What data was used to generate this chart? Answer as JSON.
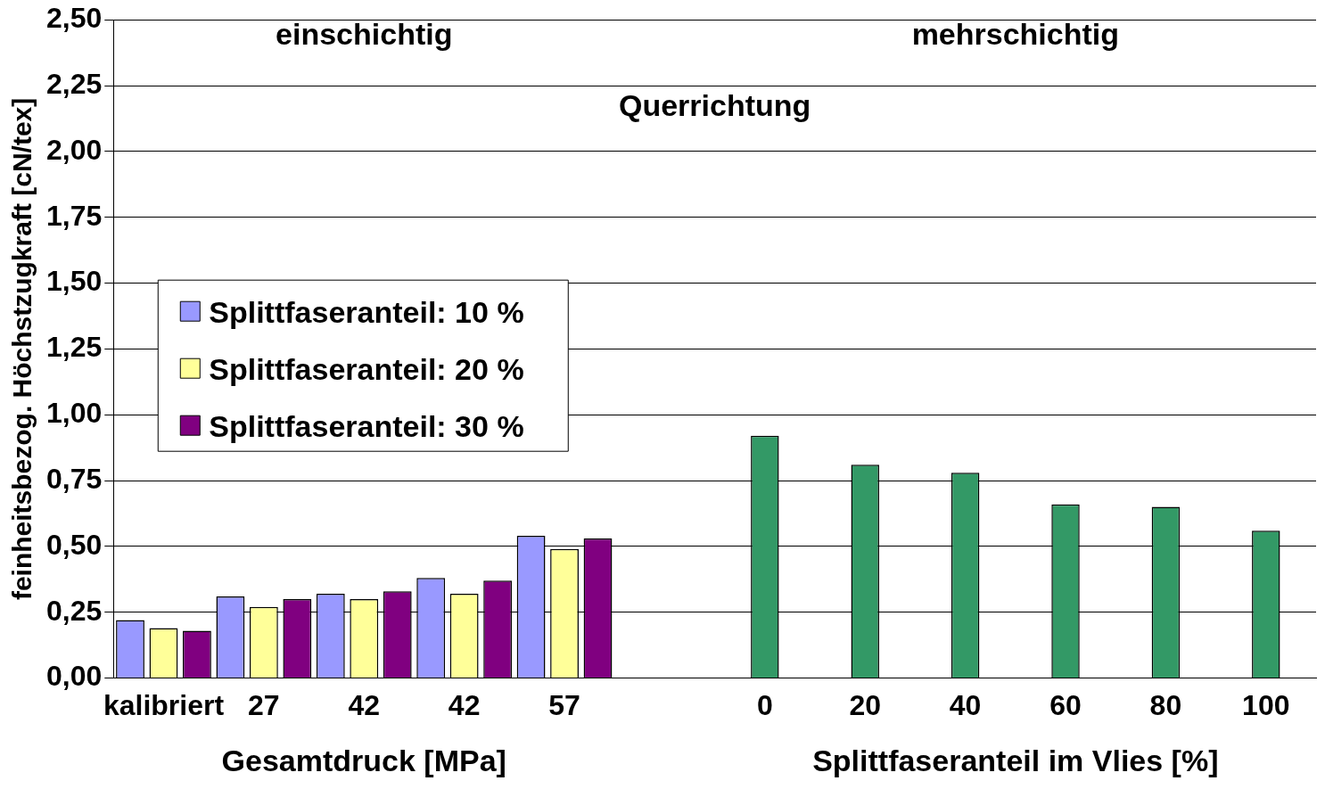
{
  "chart_data": {
    "type": "bar",
    "title": "Querrichtung",
    "xlabel": "Gesamtdruck [MPa]",
    "ylabel": "feinheitsbezog. Höchstzugkraft [cN/tex]",
    "annotations": [
      "einschichtig",
      "mehrschichtig",
      "Splittfaseranteil im Vlies [%]"
    ],
    "categories": [
      "kalibriert",
      "27",
      "42",
      "42",
      "57",
      null,
      "0",
      "20",
      "40",
      "60",
      "80",
      "100"
    ],
    "series": [
      {
        "name": "Splittfaseranteil: 10 %",
        "color": "#9999ff",
        "values": [
          0.22,
          0.31,
          0.32,
          0.38,
          0.54,
          null,
          null,
          null,
          null,
          null,
          null,
          null
        ]
      },
      {
        "name": "Splittfaseranteil: 20 %",
        "color": "#ffff99",
        "values": [
          0.19,
          0.27,
          0.3,
          0.32,
          0.49,
          null,
          null,
          null,
          null,
          null,
          null,
          null
        ]
      },
      {
        "name": "Splittfaseranteil: 30 %",
        "color": "#800080",
        "values": [
          0.18,
          0.3,
          0.33,
          0.37,
          0.53,
          null,
          null,
          null,
          null,
          null,
          null,
          null
        ]
      },
      {
        "color": "#339966",
        "values": [
          null,
          null,
          null,
          null,
          null,
          null,
          0.92,
          0.81,
          0.78,
          0.66,
          0.65,
          0.56
        ]
      }
    ],
    "ylim": [
      0,
      2.5
    ],
    "yticks": [
      {
        "value": 0,
        "label": "0,00"
      },
      {
        "value": 0.25,
        "label": "0,25"
      },
      {
        "value": 0.5,
        "label": "0,50"
      },
      {
        "value": 0.75,
        "label": "0,75"
      },
      {
        "value": 1,
        "label": "1,00"
      },
      {
        "value": 1.25,
        "label": "1,25"
      },
      {
        "value": 1.5,
        "label": "1,50"
      },
      {
        "value": 1.75,
        "label": "1,75"
      },
      {
        "value": 2,
        "label": "2,00"
      },
      {
        "value": 2.25,
        "label": "2,25"
      },
      {
        "value": 2.5,
        "label": "2,50"
      }
    ],
    "grid": "y",
    "legend": "left"
  }
}
